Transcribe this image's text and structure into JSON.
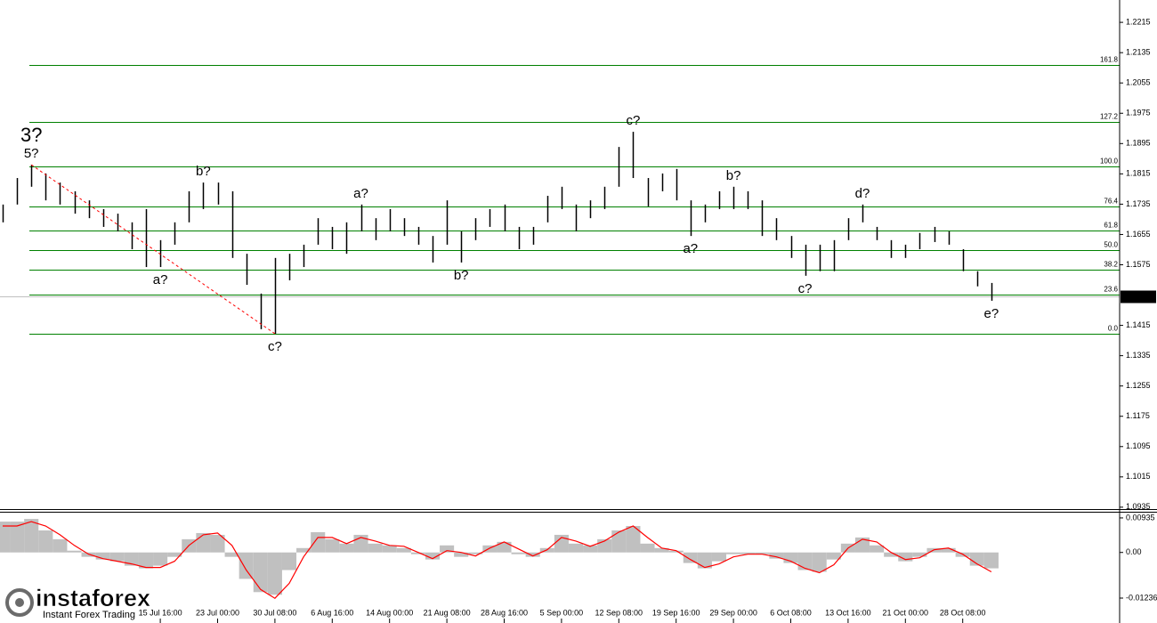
{
  "chart_data": {
    "type": "ohlc",
    "categories": [
      null,
      null,
      null,
      null,
      null,
      null,
      null,
      null,
      null,
      null,
      null,
      "15 Jul 16:00",
      null,
      null,
      null,
      "23 Jul 00:00",
      null,
      null,
      null,
      "30 Jul 08:00",
      null,
      null,
      null,
      "6 Aug 16:00",
      null,
      null,
      null,
      "14 Aug 00:00",
      null,
      null,
      null,
      "21 Aug 08:00",
      null,
      null,
      null,
      "28 Aug 16:00",
      null,
      null,
      null,
      "5 Sep 00:00",
      null,
      null,
      null,
      "12 Sep 08:00",
      null,
      null,
      null,
      "19 Sep 16:00",
      null,
      null,
      null,
      "29 Sep 00:00",
      null,
      null,
      null,
      "6 Oct 08:00",
      null,
      null,
      null,
      "13 Oct 16:00",
      null,
      null,
      null,
      "21 Oct 00:00",
      null,
      null,
      null,
      "28 Oct 08:00",
      null,
      null
    ],
    "high": [
      1.1734,
      1.1804,
      1.1839,
      1.1816,
      1.1792,
      1.1769,
      1.1745,
      1.1722,
      1.171,
      1.1687,
      1.1722,
      1.164,
      1.1687,
      1.1769,
      1.1792,
      1.1792,
      1.1769,
      1.1604,
      1.1499,
      1.1593,
      1.1604,
      1.1628,
      1.1698,
      1.1675,
      1.1687,
      1.1734,
      1.1698,
      1.1722,
      1.1698,
      1.1675,
      1.1651,
      1.1745,
      1.1663,
      1.1698,
      1.1722,
      1.1734,
      1.1675,
      1.1675,
      1.1757,
      1.1781,
      1.1734,
      1.1745,
      1.1781,
      1.1886,
      1.1926,
      1.1804,
      1.1816,
      1.1828,
      1.1745,
      1.1734,
      1.1769,
      1.1781,
      1.1769,
      1.1745,
      1.1698,
      1.1651,
      1.1628,
      1.1628,
      1.164,
      1.1698,
      1.1734,
      1.1675,
      1.164,
      1.1628,
      1.1659,
      1.1675,
      1.1663,
      1.1616,
      1.1558,
      1.1527
    ],
    "low": [
      1.1687,
      1.1734,
      1.1781,
      1.1745,
      1.1734,
      1.171,
      1.1698,
      1.1675,
      1.1663,
      1.1616,
      1.1569,
      1.1569,
      1.1628,
      1.1687,
      1.1722,
      1.1734,
      1.1593,
      1.1522,
      1.1405,
      1.1393,
      1.1534,
      1.1569,
      1.1628,
      1.1616,
      1.1604,
      1.1663,
      1.164,
      1.1663,
      1.1651,
      1.1628,
      1.1581,
      1.1628,
      1.1581,
      1.164,
      1.1675,
      1.1663,
      1.1616,
      1.1628,
      1.1687,
      1.1722,
      1.1663,
      1.1698,
      1.1722,
      1.1781,
      1.1804,
      1.1729,
      1.1769,
      1.1745,
      1.1651,
      1.1687,
      1.1722,
      1.1722,
      1.1722,
      1.1651,
      1.164,
      1.1593,
      1.1546,
      1.1558,
      1.1558,
      1.164,
      1.1687,
      1.164,
      1.1593,
      1.1593,
      1.1616,
      1.1635,
      1.1628,
      1.1558,
      1.1518,
      1.148
    ],
    "bar_color": "#000000",
    "ylim": [
      1.093,
      1.2274
    ],
    "yticks": [
      1.2215,
      1.2135,
      1.2055,
      1.1975,
      1.1895,
      1.1815,
      1.1735,
      1.1655,
      1.1575,
      1.1415,
      1.1335,
      1.1255,
      1.1175,
      1.1095,
      1.1015,
      1.0935
    ],
    "current_price": 1.1491,
    "fib_levels": [
      {
        "value": 1.1393,
        "label": "0.0"
      },
      {
        "value": 1.1496,
        "label": "23.6"
      },
      {
        "value": 1.1562,
        "label": "38.2"
      },
      {
        "value": 1.1614,
        "label": "50.0"
      },
      {
        "value": 1.1665,
        "label": "61.8"
      },
      {
        "value": 1.1729,
        "label": "76.4"
      },
      {
        "value": 1.1835,
        "label": "100.0"
      },
      {
        "value": 1.1952,
        "label": "127.2"
      },
      {
        "value": 1.2102,
        "label": "161.8"
      }
    ],
    "fib_color": "#008000",
    "wave_labels": [
      null,
      null,
      "5?",
      null,
      null,
      null,
      null,
      null,
      null,
      null,
      null,
      "a?",
      null,
      null,
      "b?",
      null,
      null,
      null,
      null,
      "c?",
      null,
      null,
      null,
      null,
      null,
      "a?",
      null,
      null,
      null,
      null,
      null,
      null,
      "b?",
      null,
      null,
      null,
      null,
      null,
      null,
      null,
      null,
      null,
      null,
      null,
      "c?",
      null,
      null,
      null,
      "a?",
      null,
      null,
      "b?",
      null,
      null,
      null,
      null,
      "c?",
      null,
      null,
      null,
      "d?",
      null,
      null,
      null,
      null,
      null,
      null,
      null,
      null,
      "e?"
    ],
    "wave_color": "#ff0000",
    "degree_labels": [
      null,
      null,
      "3?",
      null,
      null,
      null,
      null,
      null,
      null,
      null,
      null,
      null,
      null,
      null,
      null,
      null,
      null,
      null,
      null,
      null,
      null,
      null,
      null,
      null,
      null,
      null,
      null,
      null,
      null,
      null,
      null,
      null,
      null,
      null,
      null,
      null,
      null,
      null,
      null,
      null,
      null,
      null,
      null,
      null,
      null,
      null,
      null,
      null,
      null,
      null,
      null,
      null,
      null,
      null,
      null,
      null,
      null,
      null,
      null,
      null,
      null,
      null,
      null,
      null,
      null,
      null,
      null,
      null,
      null,
      null
    ],
    "degree_color": "#0000ff",
    "indicator": {
      "type": "macd",
      "histogram": [
        0.00835,
        0.00835,
        0.00907,
        0.00597,
        0.00358,
        0.00048,
        -0.00119,
        -0.00191,
        -0.00239,
        -0.00358,
        -0.0043,
        -0.00358,
        -0.00119,
        0.00358,
        0.00525,
        0.00477,
        -0.00119,
        -0.00716,
        -0.01074,
        -0.01146,
        -0.00477,
        0.00119,
        0.00549,
        0.00358,
        0.00239,
        0.00477,
        0.00239,
        0.00191,
        0.00119,
        -0.00048,
        -0.00191,
        0.00191,
        -0.00119,
        -0.00048,
        0.00191,
        0.00286,
        -0.00048,
        -0.00119,
        0.00119,
        0.00477,
        0.00239,
        0.00191,
        0.00358,
        0.00597,
        0.00716,
        0.00239,
        0.00119,
        0.00048,
        -0.00286,
        -0.0043,
        -0.00239,
        -0.00048,
        -0.00048,
        -0.00048,
        -0.00167,
        -0.00286,
        -0.00477,
        -0.00525,
        -0.00191,
        0.00239,
        0.00406,
        0.00191,
        -0.00119,
        -0.00239,
        -0.00119,
        0.00119,
        0.00119,
        -0.00119,
        -0.00358,
        -0.0043
      ],
      "signal": [
        0.00716,
        0.00716,
        0.00835,
        0.00716,
        0.00477,
        0.00191,
        -0.00048,
        -0.00167,
        -0.00239,
        -0.0031,
        -0.00406,
        -0.00406,
        -0.00239,
        0.00191,
        0.00477,
        0.00525,
        0.00191,
        -0.00477,
        -0.01002,
        -0.01241,
        -0.00835,
        -0.00119,
        0.00406,
        0.00406,
        0.00239,
        0.00406,
        0.0031,
        0.00191,
        0.00167,
        0,
        -0.00167,
        0.00048,
        0,
        -0.00095,
        0.00119,
        0.00286,
        0.00095,
        -0.00095,
        0.00072,
        0.00406,
        0.0031,
        0.00167,
        0.0031,
        0.00549,
        0.00716,
        0.00406,
        0.00119,
        0.00048,
        -0.00191,
        -0.00406,
        -0.0031,
        -0.00119,
        -0.00048,
        -0.00048,
        -0.00119,
        -0.00239,
        -0.0043,
        -0.00549,
        -0.00334,
        0.00119,
        0.00358,
        0.00286,
        0,
        -0.00191,
        -0.00143,
        0.00072,
        0.00119,
        -0.00048,
        -0.0031,
        -0.00525
      ],
      "histogram_color": "#c0c0c0",
      "signal_color": "#ff0000",
      "ylim": [
        -0.0179,
        0.01078
      ],
      "yticks": [
        0.00935,
        {
          "value": 0,
          "label": "0.00"
        },
        -0.01236
      ]
    },
    "watermark": {
      "brand": "instaforex",
      "tagline": "Instant Forex Trading"
    }
  }
}
